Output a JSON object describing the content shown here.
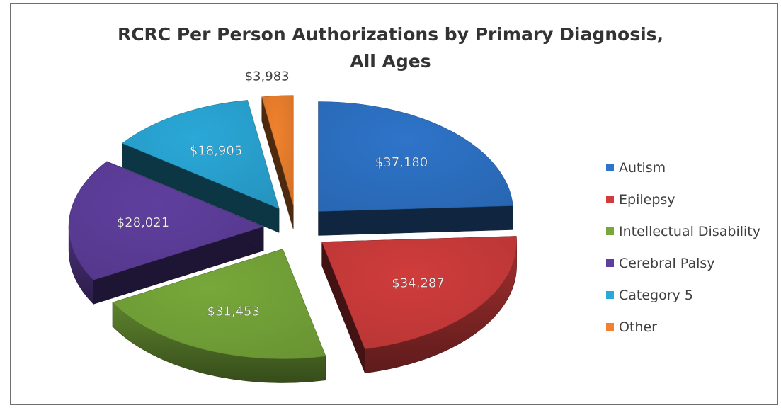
{
  "chart_data": {
    "type": "pie",
    "title": "RCRC Per Person Authorizations by Primary Diagnosis,",
    "subtitle": "All Ages",
    "categories": [
      "Autism",
      "Epilepsy",
      "Intellectual Disability",
      "Cerebral Palsy",
      "Category 5",
      "Other"
    ],
    "values": [
      37180,
      34287,
      31453,
      28021,
      18905,
      3983
    ],
    "data_labels": [
      "$37,180",
      "$34,287",
      "$31,453",
      "$28,021",
      "$18,905",
      "$3,983"
    ],
    "colors": [
      "#2e74c9",
      "#d03c3c",
      "#77a83a",
      "#5f3f9e",
      "#2aa8d8",
      "#f0822e"
    ],
    "style": "3d-exploded",
    "legend_position": "right"
  }
}
